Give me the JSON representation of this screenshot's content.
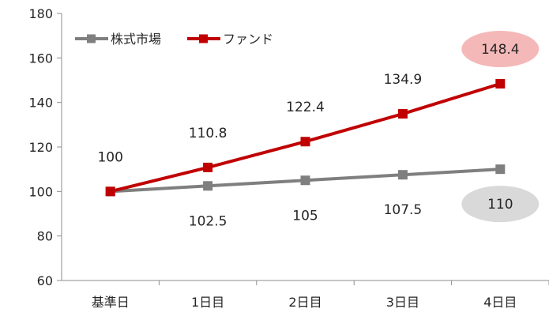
{
  "chart_data": {
    "type": "line",
    "categories": [
      "基準日",
      "1日目",
      "2日目",
      "3日目",
      "4日目"
    ],
    "ylim": [
      60,
      180
    ],
    "yticks": [
      60,
      80,
      100,
      120,
      140,
      160,
      180
    ],
    "grid": false,
    "legend": "top-left",
    "series": [
      {
        "name": "株式市場",
        "color": "#7f7f7f",
        "values": [
          100,
          102.5,
          105,
          107.5,
          110
        ],
        "labels": [
          "",
          "102.5",
          "105",
          "107.5",
          "110"
        ],
        "label_position": "below"
      },
      {
        "name": "ファンド",
        "color": "#c00000",
        "values": [
          100,
          110.8,
          122.4,
          134.9,
          148.4
        ],
        "labels": [
          "100",
          "110.8",
          "122.4",
          "134.9",
          "148.4"
        ],
        "label_position": "above"
      }
    ],
    "highlights": [
      {
        "series": 1,
        "index": 4,
        "color": "#f4b8b8"
      },
      {
        "series": 0,
        "index": 4,
        "color": "#d9d9d9"
      }
    ]
  }
}
